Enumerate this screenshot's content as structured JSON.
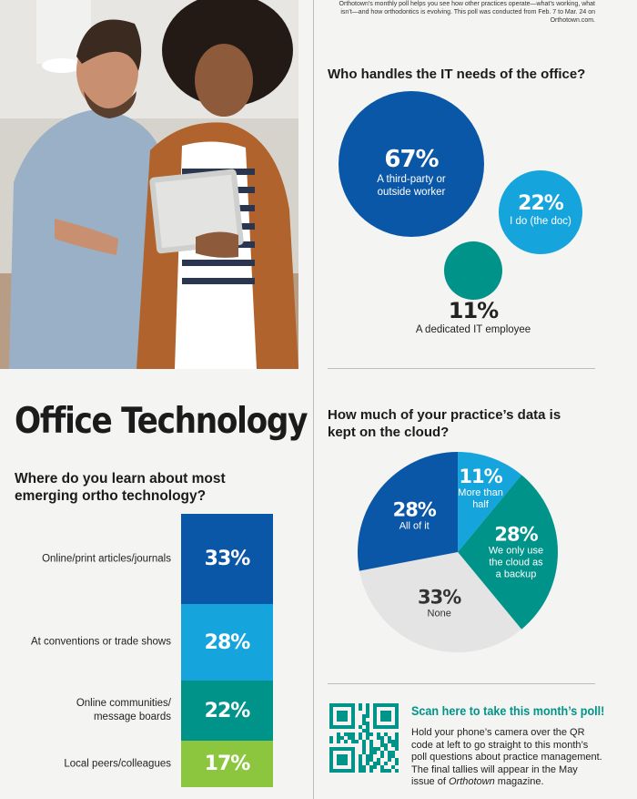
{
  "intro_text": "Orthotown’s monthly poll helps you see how other practices operate—what’s working, what isn’t—and how orthodontics is evolving. This poll was conducted from Feb. 7 to Mar. 24 on Orthotown.com.",
  "main_title": "Office Technology",
  "colors": {
    "dark_blue": "#0b57a7",
    "light_blue": "#15a5dc",
    "teal": "#00938a",
    "green": "#8cc63f",
    "gray": "#e3e4e3"
  },
  "icons": [
    "qr-code-icon"
  ],
  "chart_data": [
    {
      "type": "bar",
      "title": "Where do you learn about most emerging ortho technology?",
      "categories": [
        "Online/print articles/journals",
        "At conventions or trade shows",
        "Online communities/ message boards",
        "Local peers/colleagues"
      ],
      "values": [
        33,
        28,
        22,
        17
      ],
      "labels": [
        "33%",
        "28%",
        "22%",
        "17%"
      ],
      "colors": [
        "#0b57a7",
        "#15a5dc",
        "#00938a",
        "#8cc63f"
      ]
    },
    {
      "type": "scatter",
      "title": "Who handles the IT needs of the office?",
      "categories": [
        "A third-party or outside worker",
        "I do (the doc)",
        "A dedicated IT employee"
      ],
      "values": [
        67,
        22,
        11
      ],
      "labels": [
        "67%",
        "22%",
        "11%"
      ],
      "colors": [
        "#0b57a7",
        "#15a5dc",
        "#00938a"
      ]
    },
    {
      "type": "pie",
      "title": "How much of your practice’s data is kept on the cloud?",
      "categories": [
        "More than half",
        "We only use the cloud as a backup",
        "None",
        "All of it"
      ],
      "values": [
        11,
        28,
        33,
        28
      ],
      "labels": [
        "11%",
        "28%",
        "33%",
        "28%"
      ],
      "colors": [
        "#15a5dc",
        "#00938a",
        "#e3e4e3",
        "#0b57a7"
      ]
    }
  ],
  "pie_text": {
    "more_than_half": "More than\nhalf",
    "backup": "We only use\nthe cloud as\na backup"
  },
  "bar_label_lines": [
    [
      "Online/print articles/journals"
    ],
    [
      "At conventions or trade shows"
    ],
    [
      "Online communities/",
      "message boards"
    ],
    [
      "Local peers/colleagues"
    ]
  ],
  "poll": {
    "title": "Scan here to take this month’s poll!",
    "body": "Hold your phone’s camera over the QR code at left to go straight to this month’s poll questions about practice management. The final tallies will appear in the May issue of ",
    "magazine": "Orthotown",
    "body_end": " magazine."
  }
}
